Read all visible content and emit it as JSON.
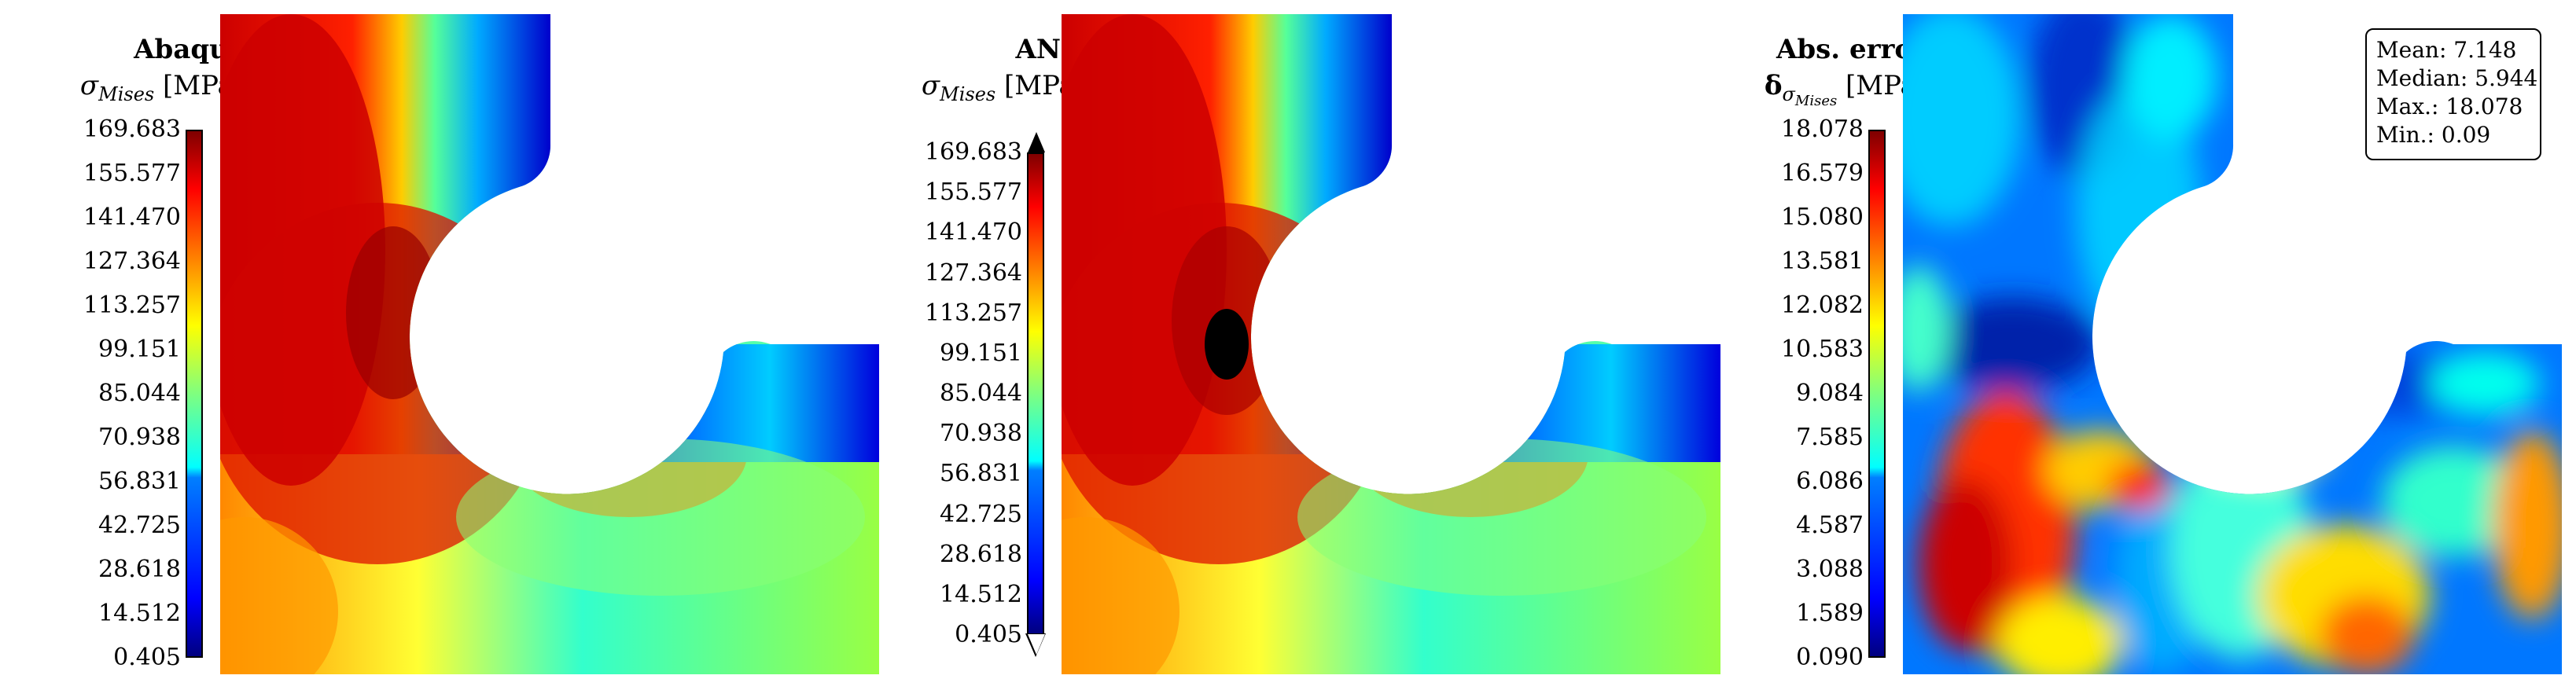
{
  "panels": [
    {
      "title": "Abaqus",
      "symbol": "σ",
      "subscript": "Mises",
      "unit": "[MPa]",
      "ticks": [
        "169.683",
        "155.577",
        "141.470",
        "127.364",
        "113.257",
        "99.151",
        "85.044",
        "70.938",
        "56.831",
        "42.725",
        "28.618",
        "14.512",
        "0.405"
      ],
      "colorbar_extend": "neither"
    },
    {
      "title": "ANN",
      "symbol": "σ",
      "subscript": "Mises",
      "unit": "[MPa]",
      "ticks": [
        "169.683",
        "155.577",
        "141.470",
        "127.364",
        "113.257",
        "99.151",
        "85.044",
        "70.938",
        "56.831",
        "42.725",
        "28.618",
        "14.512",
        "0.405"
      ],
      "colorbar_extend": "both"
    },
    {
      "title": "Abs. error",
      "symbol": "δ",
      "subscript": "σ",
      "subsub": "Mises",
      "unit": "[MPa]",
      "ticks": [
        "18.078",
        "16.579",
        "15.080",
        "13.581",
        "12.082",
        "10.583",
        "9.084",
        "7.585",
        "6.086",
        "4.587",
        "3.088",
        "1.589",
        "0.090"
      ],
      "colorbar_extend": "neither"
    }
  ],
  "stats": {
    "mean": "Mean: 7.148",
    "median": "Median: 5.944",
    "max": "Max.: 18.078",
    "min": "Min.: 0.09"
  },
  "colormap": "jet"
}
